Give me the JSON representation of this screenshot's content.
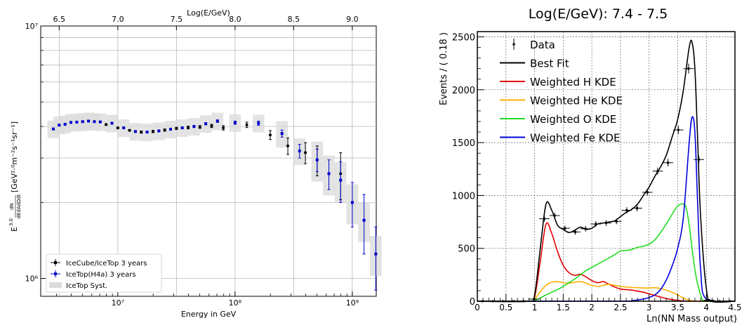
{
  "chart_data": [
    {
      "type": "scatter",
      "xlabel": "Energy in GeV",
      "ylabel_main": "E",
      "ylabel_sup": "3.0",
      "ylabel_frac_num": "dN",
      "ylabel_frac_den": "dEdAdΩdt",
      "ylabel_units": "[GeV²·⁰m⁻²s⁻¹sr⁻¹]",
      "x2label": "Log(E/GeV)",
      "xscale": "log",
      "yscale": "log",
      "xlim": [
        2200000.0,
        1600000000.0
      ],
      "ylim": [
        850000.0,
        10000000.0
      ],
      "xticks_major": [
        {
          "v": 10000000.0,
          "l": "10⁷"
        },
        {
          "v": 100000000.0,
          "l": "10⁸"
        },
        {
          "v": 1000000000.0,
          "l": "10⁹"
        }
      ],
      "x2ticks": [
        "6.5",
        "7.0",
        "7.5",
        "8.0",
        "8.5",
        "9.0"
      ],
      "yticks_major": [
        {
          "v": 1000000.0,
          "l": "10⁶"
        },
        {
          "v": 10000000.0,
          "l": "10⁷"
        }
      ],
      "legend": [
        "IceCube/IceTop 3 years",
        "IceTop(H4a) 3 years",
        "IceTop Syst."
      ],
      "series": [
        {
          "name": "IceCube/IceTop 3 years",
          "color": "#000000",
          "points": [
            [
              6.9,
              4070000.0,
              30000.0
            ],
            [
              7.0,
              3950000.0,
              30000.0
            ],
            [
              7.1,
              3860000.0,
              30000.0
            ],
            [
              7.2,
              3800000.0,
              40000.0
            ],
            [
              7.3,
              3820000.0,
              40000.0
            ],
            [
              7.4,
              3870000.0,
              40000.0
            ],
            [
              7.5,
              3930000.0,
              40000.0
            ],
            [
              7.6,
              3960000.0,
              50000.0
            ],
            [
              7.7,
              3980000.0,
              50000.0
            ],
            [
              7.8,
              4020000.0,
              60000.0
            ],
            [
              7.9,
              3950000.0,
              80000.0
            ],
            [
              8.1,
              4060000.0,
              100000.0
            ],
            [
              8.3,
              3700000.0,
              150000.0
            ],
            [
              8.45,
              3350000.0,
              250000.0
            ],
            [
              8.6,
              3150000.0,
              300000.0
            ],
            [
              8.7,
              2950000.0,
              400000.0
            ],
            [
              8.9,
              2600000.0,
              550000.0
            ]
          ]
        },
        {
          "name": "IceTop(H4a) 3 years",
          "color": "#0000cc",
          "points": [
            [
              6.45,
              3910000.0,
              20000.0
            ],
            [
              6.5,
              4050000.0,
              20000.0
            ],
            [
              6.55,
              4080000.0,
              20000.0
            ],
            [
              6.6,
              4150000.0,
              20000.0
            ],
            [
              6.65,
              4160000.0,
              20000.0
            ],
            [
              6.7,
              4180000.0,
              20000.0
            ],
            [
              6.75,
              4200000.0,
              20000.0
            ],
            [
              6.8,
              4180000.0,
              20000.0
            ],
            [
              6.85,
              4170000.0,
              20000.0
            ],
            [
              6.95,
              4120000.0,
              20000.0
            ],
            [
              7.05,
              3950000.0,
              20000.0
            ],
            [
              7.15,
              3820000.0,
              20000.0
            ],
            [
              7.25,
              3800000.0,
              20000.0
            ],
            [
              7.35,
              3840000.0,
              30000.0
            ],
            [
              7.45,
              3900000.0,
              30000.0
            ],
            [
              7.55,
              3950000.0,
              30000.0
            ],
            [
              7.65,
              4000000.0,
              40000.0
            ],
            [
              7.75,
              4100000.0,
              40000.0
            ],
            [
              7.85,
              4200000.0,
              50000.0
            ],
            [
              8.0,
              4140000.0,
              60000.0
            ],
            [
              8.2,
              4120000.0,
              80000.0
            ],
            [
              8.4,
              3750000.0,
              120000.0
            ],
            [
              8.55,
              3200000.0,
              200000.0
            ],
            [
              8.7,
              2950000.0,
              300000.0
            ],
            [
              8.8,
              2600000.0,
              350000.0
            ],
            [
              8.9,
              2450000.0,
              450000.0
            ],
            [
              9.0,
              2000000.0,
              400000.0
            ],
            [
              9.1,
              1700000.0,
              450000.0
            ],
            [
              9.2,
              1250000.0,
              350000.0
            ]
          ]
        }
      ],
      "syst_band_color": "#dcdcdc"
    },
    {
      "type": "line",
      "title": "Log(E/GeV): 7.4 - 7.5",
      "xlabel": "Ln(NN Mass output)",
      "ylabel": "Events / ( 0.18 )",
      "xlim": [
        0,
        4.5
      ],
      "ylim": [
        0,
        2550
      ],
      "xticks": [
        "0",
        "0.5",
        "1",
        "1.5",
        "2",
        "2.5",
        "3",
        "3.5",
        "4",
        "4.5"
      ],
      "yticks": [
        "0",
        "500",
        "1000",
        "1500",
        "2000",
        "2500"
      ],
      "grid": true,
      "legend_position": "top-left",
      "data_points": {
        "name": "Data",
        "x": [
          0.09,
          0.27,
          0.45,
          0.63,
          0.81,
          0.99,
          1.17,
          1.35,
          1.53,
          1.71,
          1.89,
          2.07,
          2.25,
          2.43,
          2.61,
          2.79,
          2.97,
          3.15,
          3.33,
          3.51,
          3.69,
          3.87,
          4.05,
          4.23,
          4.41
        ],
        "y": [
          0,
          0,
          0,
          0,
          0,
          20,
          780,
          810,
          690,
          655,
          685,
          730,
          740,
          755,
          860,
          880,
          1030,
          1230,
          1310,
          1620,
          2200,
          1340,
          10,
          0,
          0
        ],
        "yerr": [
          0,
          0,
          0,
          0,
          0,
          5,
          28,
          28,
          26,
          26,
          26,
          27,
          27,
          27,
          29,
          30,
          32,
          35,
          36,
          40,
          47,
          37,
          3,
          0,
          0
        ]
      },
      "series": [
        {
          "name": "Best Fit",
          "color": "#000000",
          "x": [
            0,
            0.9,
            1.0,
            1.1,
            1.2,
            1.3,
            1.4,
            1.5,
            1.6,
            1.7,
            1.8,
            1.9,
            2.0,
            2.1,
            2.2,
            2.3,
            2.4,
            2.5,
            2.6,
            2.7,
            2.8,
            2.9,
            3.0,
            3.1,
            3.2,
            3.3,
            3.4,
            3.5,
            3.6,
            3.7,
            3.75,
            3.8,
            3.85,
            3.9,
            4.0,
            4.1,
            4.5
          ],
          "y": [
            0,
            0,
            60,
            500,
            920,
            860,
            720,
            680,
            650,
            670,
            700,
            680,
            690,
            730,
            740,
            750,
            760,
            800,
            840,
            870,
            920,
            1000,
            1080,
            1180,
            1270,
            1380,
            1550,
            1720,
            2000,
            2400,
            2450,
            2200,
            1500,
            800,
            120,
            0,
            0
          ]
        },
        {
          "name": "Weighted H KDE",
          "color": "#e00000",
          "x": [
            0,
            0.9,
            1.0,
            1.1,
            1.2,
            1.3,
            1.4,
            1.5,
            1.6,
            1.7,
            1.8,
            1.9,
            2.0,
            2.1,
            2.2,
            2.3,
            2.4,
            2.5,
            2.6,
            2.7,
            2.8,
            2.9,
            3.0,
            3.1,
            3.2,
            3.3,
            3.4,
            3.5,
            3.6,
            3.7,
            3.8,
            4.5
          ],
          "y": [
            0,
            0,
            40,
            380,
            730,
            640,
            470,
            340,
            270,
            245,
            255,
            230,
            195,
            175,
            185,
            160,
            135,
            115,
            110,
            105,
            95,
            85,
            70,
            55,
            40,
            25,
            15,
            8,
            3,
            0,
            0,
            0
          ]
        },
        {
          "name": "Weighted He KDE",
          "color": "#ffb000",
          "x": [
            0,
            0.9,
            1.0,
            1.1,
            1.2,
            1.3,
            1.4,
            1.5,
            1.6,
            1.7,
            1.8,
            1.9,
            2.0,
            2.1,
            2.2,
            2.3,
            2.4,
            2.5,
            2.6,
            2.7,
            2.8,
            2.9,
            3.0,
            3.1,
            3.2,
            3.3,
            3.4,
            3.5,
            3.6,
            3.7,
            3.8,
            3.9,
            4.5
          ],
          "y": [
            0,
            0,
            20,
            90,
            150,
            180,
            185,
            175,
            170,
            180,
            185,
            170,
            150,
            140,
            150,
            160,
            150,
            140,
            135,
            130,
            128,
            125,
            125,
            128,
            120,
            105,
            85,
            60,
            30,
            10,
            0,
            0,
            0
          ]
        },
        {
          "name": "Weighted O KDE",
          "color": "#22dd22",
          "x": [
            0,
            0.9,
            1.0,
            1.1,
            1.2,
            1.3,
            1.4,
            1.5,
            1.6,
            1.7,
            1.8,
            1.9,
            2.0,
            2.1,
            2.2,
            2.3,
            2.4,
            2.5,
            2.6,
            2.7,
            2.8,
            2.9,
            3.0,
            3.1,
            3.2,
            3.3,
            3.4,
            3.5,
            3.6,
            3.65,
            3.7,
            3.8,
            3.9,
            4.0,
            4.5
          ],
          "y": [
            0,
            0,
            5,
            30,
            60,
            85,
            110,
            140,
            175,
            210,
            250,
            290,
            320,
            350,
            380,
            410,
            440,
            475,
            480,
            490,
            510,
            520,
            540,
            580,
            650,
            730,
            820,
            900,
            920,
            880,
            720,
            300,
            60,
            0,
            0
          ]
        },
        {
          "name": "Weighted Fe KDE",
          "color": "#0000dd",
          "x": [
            0,
            2.5,
            2.7,
            2.9,
            3.0,
            3.1,
            3.2,
            3.3,
            3.4,
            3.5,
            3.6,
            3.7,
            3.75,
            3.8,
            3.85,
            3.9,
            4.0,
            4.5
          ],
          "y": [
            0,
            0,
            5,
            20,
            35,
            60,
            110,
            200,
            330,
            500,
            800,
            1500,
            1740,
            1600,
            900,
            300,
            20,
            0
          ]
        }
      ]
    }
  ]
}
